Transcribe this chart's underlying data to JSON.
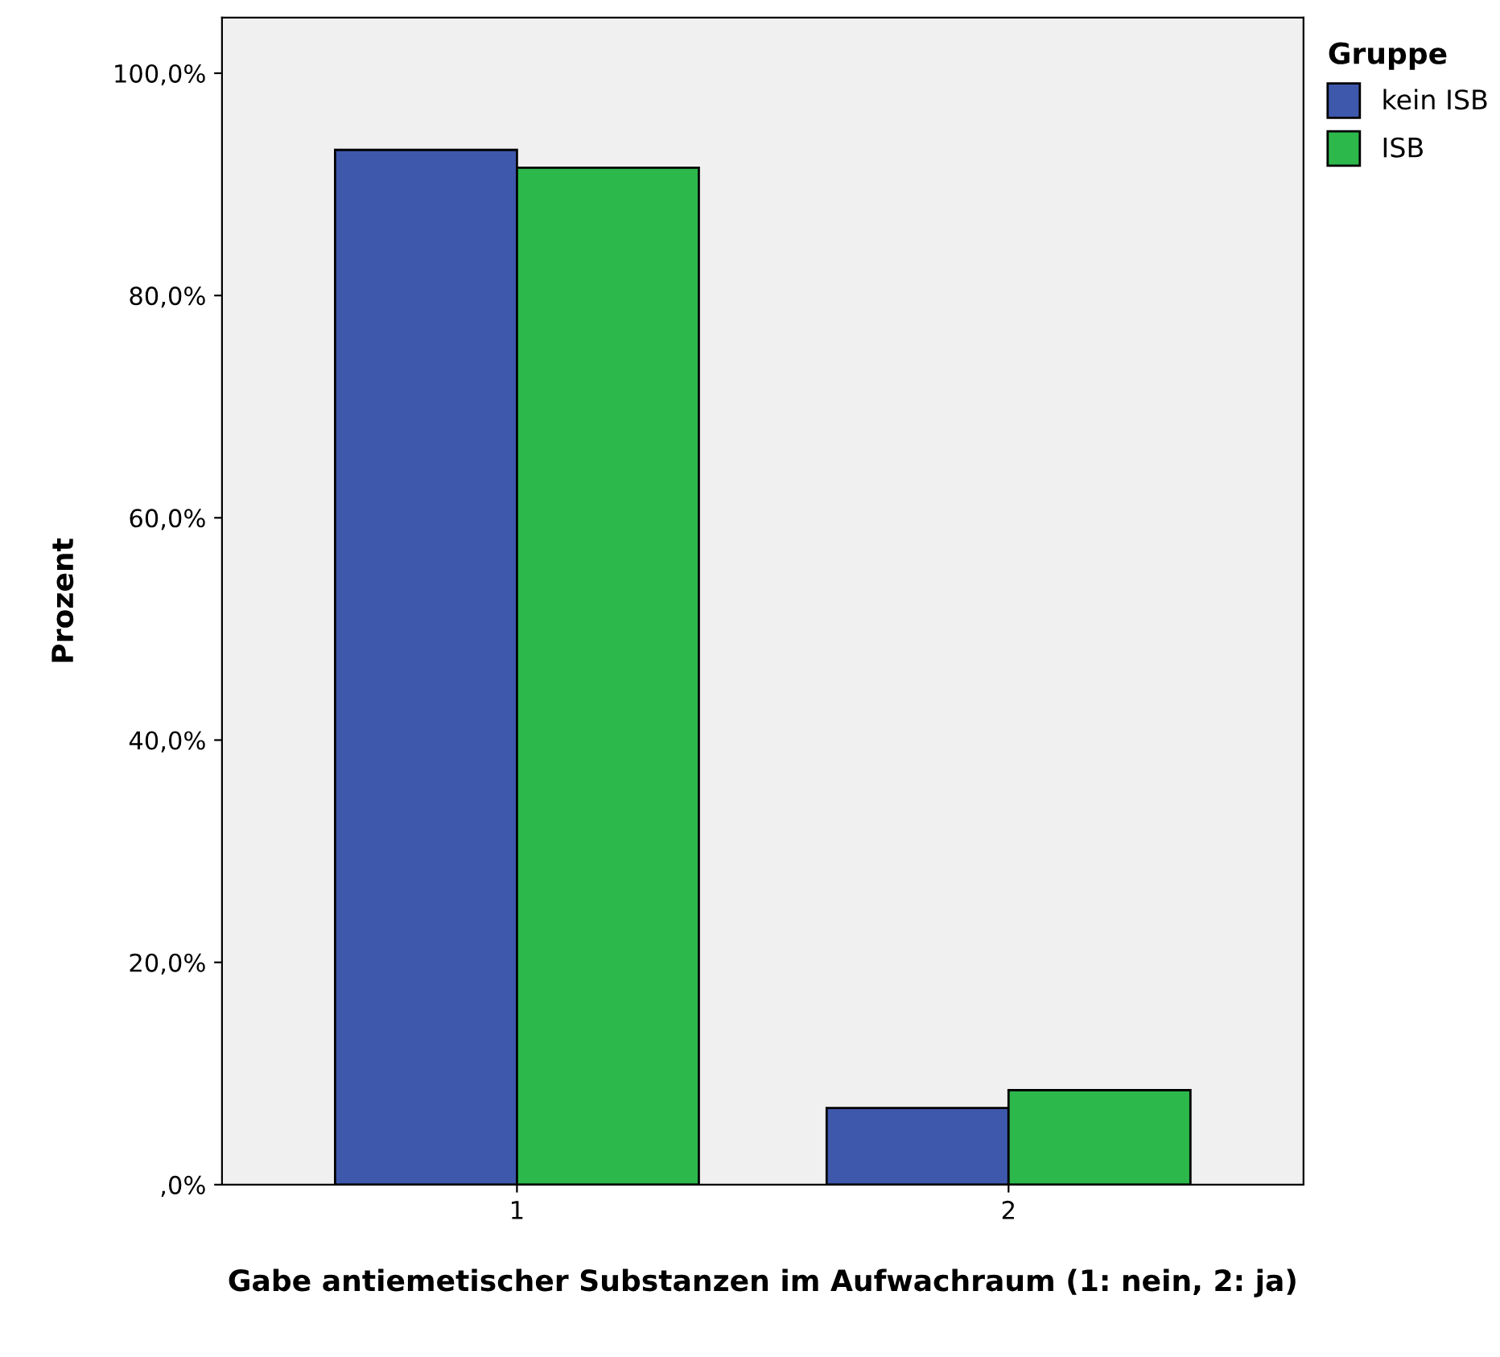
{
  "chart_data": {
    "type": "bar",
    "xlabel": "Gabe antiemetischer Substanzen im Aufwachraum (1: nein, 2: ja)",
    "ylabel": "Prozent",
    "legend_title": "Gruppe",
    "categories": [
      "1",
      "2"
    ],
    "series": [
      {
        "name": "kein ISB",
        "color": "#3e58ac",
        "values": [
          93.1,
          6.9
        ]
      },
      {
        "name": "ISB",
        "color": "#2db84b",
        "values": [
          91.5,
          8.5
        ]
      }
    ],
    "ylim": [
      0,
      105
    ],
    "yticks": [
      {
        "value": 0,
        "label": ",0%"
      },
      {
        "value": 20,
        "label": "20,0%"
      },
      {
        "value": 40,
        "label": "40,0%"
      },
      {
        "value": 60,
        "label": "60,0%"
      },
      {
        "value": 80,
        "label": "80,0%"
      },
      {
        "value": 100,
        "label": "100,0%"
      }
    ],
    "grid": false,
    "legend": "top right"
  }
}
